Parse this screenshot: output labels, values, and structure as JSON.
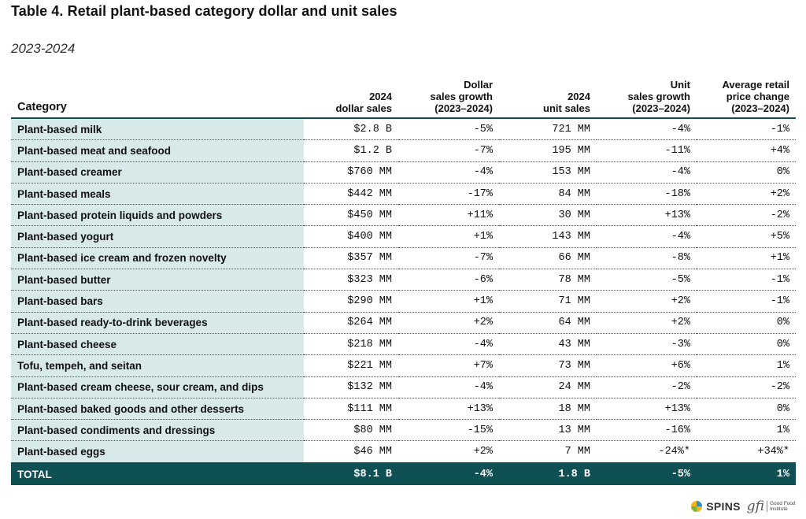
{
  "title": "Table 4. Retail plant-based category dollar and unit sales",
  "subtitle": "2023-2024",
  "headers": {
    "category": "Category",
    "dollar_sales": [
      "2024",
      "dollar sales"
    ],
    "dollar_growth": [
      "Dollar",
      "sales growth",
      "(2023–2024)"
    ],
    "unit_sales": [
      "2024",
      "unit sales"
    ],
    "unit_growth": [
      "Unit",
      "sales growth",
      "(2023–2024)"
    ],
    "price_change": [
      "Average retail",
      "price change",
      "(2023–2024)"
    ]
  },
  "rows": [
    {
      "category": "Plant-based milk",
      "dollar_sales": "$2.8 B",
      "dollar_growth": "-5%",
      "unit_sales": "721 MM",
      "unit_growth": "-4%",
      "price_change": "-1%"
    },
    {
      "category": "Plant-based meat and seafood",
      "dollar_sales": "$1.2 B",
      "dollar_growth": "-7%",
      "unit_sales": "195 MM",
      "unit_growth": "-11%",
      "price_change": "+4%"
    },
    {
      "category": "Plant-based creamer",
      "dollar_sales": "$760 MM",
      "dollar_growth": "-4%",
      "unit_sales": "153 MM",
      "unit_growth": "-4%",
      "price_change": "0%"
    },
    {
      "category": "Plant-based meals",
      "dollar_sales": "$442 MM",
      "dollar_growth": "-17%",
      "unit_sales": "84 MM",
      "unit_growth": "-18%",
      "price_change": "+2%"
    },
    {
      "category": "Plant-based protein liquids and powders",
      "dollar_sales": "$450 MM",
      "dollar_growth": "+11%",
      "unit_sales": "30 MM",
      "unit_growth": "+13%",
      "price_change": "-2%"
    },
    {
      "category": "Plant-based yogurt",
      "dollar_sales": "$400 MM",
      "dollar_growth": "+1%",
      "unit_sales": "143 MM",
      "unit_growth": "-4%",
      "price_change": "+5%"
    },
    {
      "category": "Plant-based ice cream and frozen novelty",
      "dollar_sales": "$357 MM",
      "dollar_growth": "-7%",
      "unit_sales": "66 MM",
      "unit_growth": "-8%",
      "price_change": "+1%"
    },
    {
      "category": "Plant-based butter",
      "dollar_sales": "$323 MM",
      "dollar_growth": "-6%",
      "unit_sales": "78 MM",
      "unit_growth": "-5%",
      "price_change": "-1%"
    },
    {
      "category": "Plant-based bars",
      "dollar_sales": "$290 MM",
      "dollar_growth": "+1%",
      "unit_sales": "71 MM",
      "unit_growth": "+2%",
      "price_change": "-1%"
    },
    {
      "category": "Plant-based ready-to-drink beverages",
      "dollar_sales": "$264 MM",
      "dollar_growth": "+2%",
      "unit_sales": "64 MM",
      "unit_growth": "+2%",
      "price_change": "0%"
    },
    {
      "category": "Plant-based cheese",
      "dollar_sales": "$218 MM",
      "dollar_growth": "-4%",
      "unit_sales": "43 MM",
      "unit_growth": "-3%",
      "price_change": "0%"
    },
    {
      "category": "Tofu, tempeh, and seitan",
      "dollar_sales": "$221 MM",
      "dollar_growth": "+7%",
      "unit_sales": "73 MM",
      "unit_growth": "+6%",
      "price_change": "1%"
    },
    {
      "category": "Plant-based cream cheese, sour cream, and dips",
      "dollar_sales": "$132 MM",
      "dollar_growth": "-4%",
      "unit_sales": "24 MM",
      "unit_growth": "-2%",
      "price_change": "-2%"
    },
    {
      "category": "Plant-based baked goods and other desserts",
      "dollar_sales": "$111 MM",
      "dollar_growth": "+13%",
      "unit_sales": "18 MM",
      "unit_growth": "+13%",
      "price_change": "0%"
    },
    {
      "category": "Plant-based condiments and dressings",
      "dollar_sales": "$80 MM",
      "dollar_growth": "-15%",
      "unit_sales": "13 MM",
      "unit_growth": "-16%",
      "price_change": "1%"
    },
    {
      "category": "Plant-based eggs",
      "dollar_sales": "$46 MM",
      "dollar_growth": "+2%",
      "unit_sales": "7 MM",
      "unit_growth": "-24%*",
      "price_change": "+34%*"
    }
  ],
  "total": {
    "category": "TOTAL",
    "dollar_sales": "$8.1 B",
    "dollar_growth": "-4%",
    "unit_sales": "1.8 B",
    "unit_growth": "-5%",
    "price_change": "1%"
  },
  "logos": {
    "spins": "SPINS",
    "gfi_mark": "gfi",
    "gfi_text": "Good Food Institute"
  },
  "colors": {
    "teal": "#0f5055",
    "category_bg": "#d8e9ea"
  }
}
